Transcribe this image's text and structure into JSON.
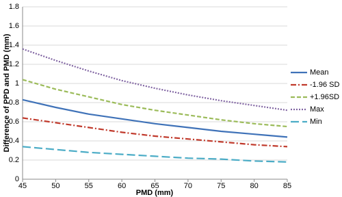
{
  "chart_data": {
    "type": "line",
    "x_label": "PMD (mm)",
    "y_label": "Difference of PPD and PMD (mm)",
    "x": [
      45,
      50,
      55,
      60,
      65,
      70,
      75,
      80,
      85
    ],
    "series": [
      {
        "name": "Mean",
        "color": "#3f72b8",
        "style": "solid",
        "values": [
          0.83,
          0.75,
          0.68,
          0.63,
          0.58,
          0.54,
          0.5,
          0.47,
          0.44
        ]
      },
      {
        "name": "-1.96 SD",
        "color": "#c0392b",
        "style": "dashdot",
        "values": [
          0.64,
          0.59,
          0.54,
          0.49,
          0.45,
          0.42,
          0.39,
          0.36,
          0.34
        ]
      },
      {
        "name": "+1.96SD",
        "color": "#9bbb59",
        "style": "dashed",
        "values": [
          1.04,
          0.94,
          0.86,
          0.78,
          0.72,
          0.67,
          0.62,
          0.58,
          0.55
        ]
      },
      {
        "name": "Max",
        "color": "#8064a2",
        "style": "dotted",
        "values": [
          1.36,
          1.24,
          1.13,
          1.03,
          0.95,
          0.88,
          0.82,
          0.77,
          0.72
        ]
      },
      {
        "name": "Min",
        "color": "#4bacc6",
        "style": "longdash",
        "values": [
          0.34,
          0.31,
          0.28,
          0.26,
          0.24,
          0.22,
          0.21,
          0.19,
          0.18
        ]
      }
    ],
    "xlim": [
      45,
      85
    ],
    "xticks": [
      45,
      50,
      55,
      60,
      65,
      70,
      75,
      80,
      85
    ],
    "ylim": [
      0,
      1.8
    ],
    "yticks": [
      0,
      0.2,
      0.4,
      0.6,
      0.8,
      1,
      1.2,
      1.4,
      1.6,
      1.8
    ],
    "grid": true,
    "legend": "right"
  }
}
